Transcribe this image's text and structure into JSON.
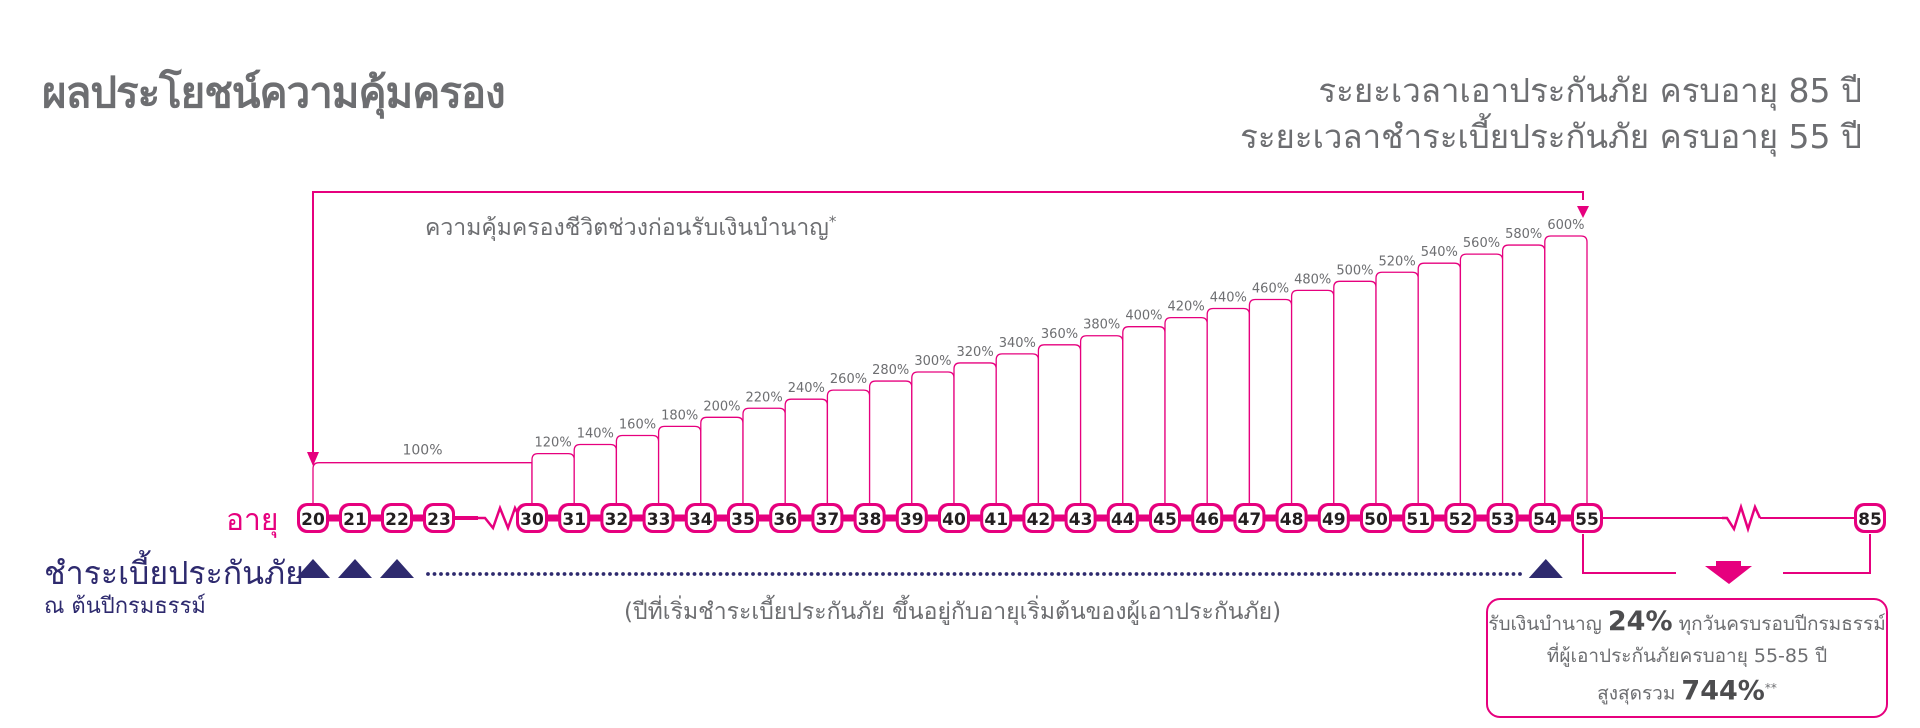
{
  "title": "ผลประโยชน์ความคุ้มครอง",
  "coverage_period": "ระยะเวลาเอาประกันภัย ครบอายุ 85 ปี",
  "premium_period": "ระยะเวลาชำระเบี้ยประกันภัย ครบอายุ 55 ปี",
  "arrow_caption": {
    "text": "ความคุ้มครองชีวิตช่วงก่อนรับเงินบำนาญ",
    "mark": "*"
  },
  "age_axis": {
    "label": "อายุ",
    "unit": "ปี",
    "ages": [
      "20",
      "21",
      "22",
      "23",
      "30",
      "31",
      "32",
      "33",
      "34",
      "35",
      "36",
      "37",
      "38",
      "39",
      "40",
      "41",
      "42",
      "43",
      "44",
      "45",
      "46",
      "47",
      "48",
      "49",
      "50",
      "51",
      "52",
      "53",
      "54",
      "55"
    ],
    "end_age": "85",
    "break_icon": "zigzag-break-icon"
  },
  "chart_data": {
    "type": "bar",
    "x": [
      20,
      21,
      22,
      23,
      30,
      31,
      32,
      33,
      34,
      35,
      36,
      37,
      38,
      39,
      40,
      41,
      42,
      43,
      44,
      45,
      46,
      47,
      48,
      49,
      50,
      51,
      52,
      53,
      54
    ],
    "values": [
      100,
      100,
      100,
      100,
      120,
      140,
      160,
      180,
      200,
      220,
      240,
      260,
      280,
      300,
      320,
      340,
      360,
      380,
      400,
      420,
      440,
      460,
      480,
      500,
      520,
      540,
      560,
      580,
      600
    ],
    "labels": [
      "100%",
      "120%",
      "140%",
      "160%",
      "180%",
      "200%",
      "220%",
      "240%",
      "260%",
      "280%",
      "300%",
      "320%",
      "340%",
      "360%",
      "380%",
      "400%",
      "420%",
      "440%",
      "460%",
      "480%",
      "500%",
      "520%",
      "540%",
      "560%",
      "580%",
      "600%"
    ],
    "unit": "%",
    "first_label_spans_ages": [
      20,
      23
    ]
  },
  "premium": {
    "label": "ชำระเบี้ยประกันภัย",
    "sublabel": "ณ ต้นปีกรมธรรม์",
    "note": "(ปีที่เริ่มชำระเบี้ยประกันภัย ขึ้นอยู่กับอายุเริ่มต้นของผู้เอาประกันภัย)",
    "marker_icon": "triangle-up-icon"
  },
  "annuity": {
    "line1_prefix": "รับเงินบำนาญ",
    "rate": "24%",
    "line1_suffix": "ทุกวันครบรอบปีกรมธรรม์",
    "line2": "ที่ผู้เอาประกันภัยครบอายุ 55-85 ปี",
    "line3_prefix": "สูงสุดรวม",
    "total": "744%",
    "total_mark": "**"
  },
  "colors": {
    "magenta": "#e6007e",
    "navy": "#2e2a6e",
    "gray": "#6d6e71"
  }
}
